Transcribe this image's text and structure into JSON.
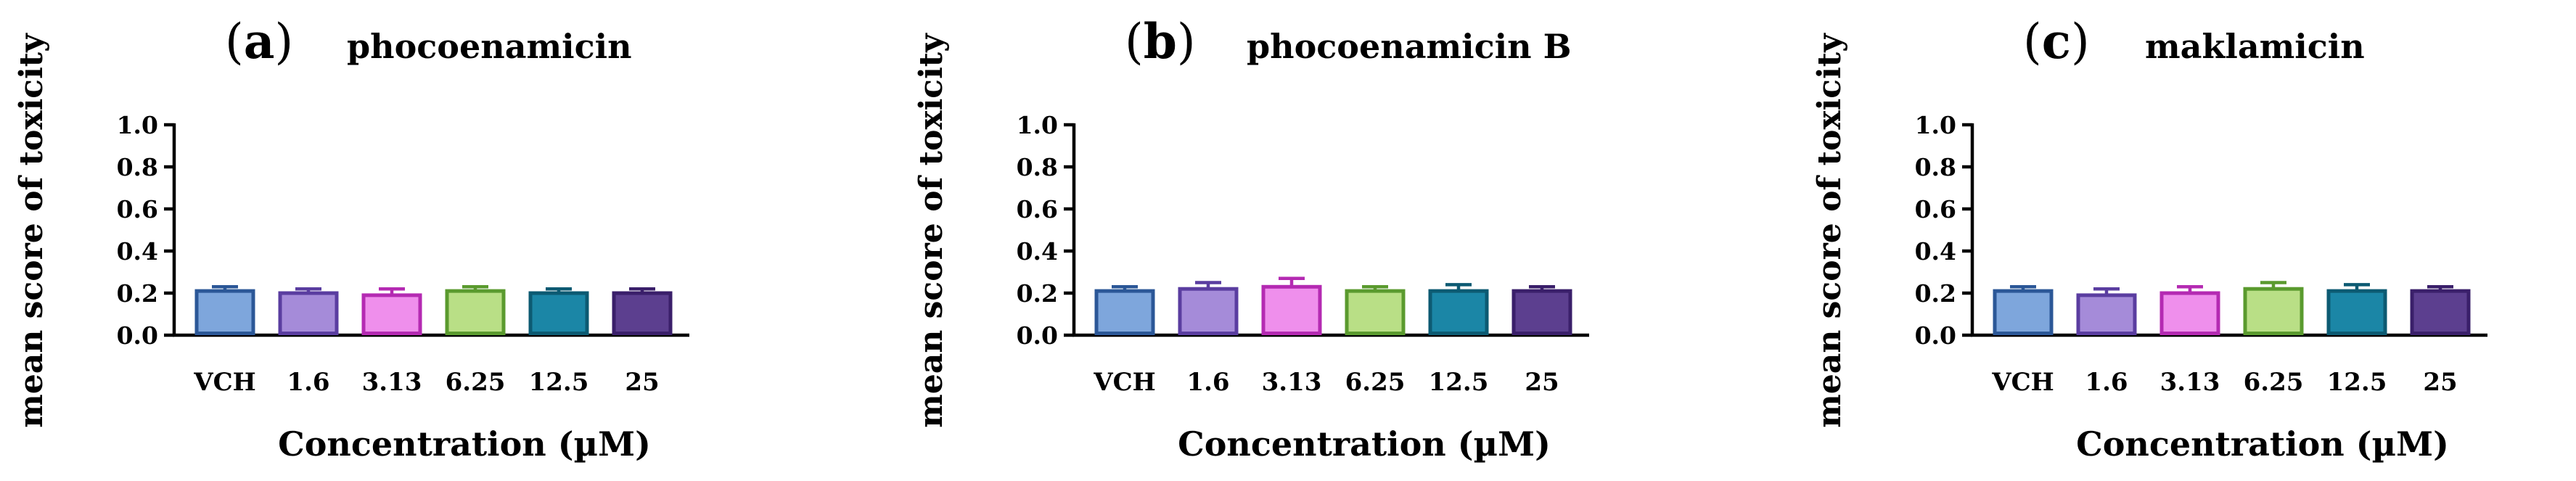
{
  "chart_data": [
    {
      "type": "bar",
      "panel": "a",
      "title": "phocoenamicin",
      "ylabel": "mean score of toxicity",
      "xlabel": "Concentration (µM)",
      "ylim": [
        0,
        1.0
      ],
      "yticks": [
        "0.0",
        "0.2",
        "0.4",
        "0.6",
        "0.8",
        "1.0"
      ],
      "categories": [
        "VCH",
        "1.6",
        "3.13",
        "6.25",
        "12.5",
        "25"
      ],
      "values": [
        0.21,
        0.2,
        0.19,
        0.21,
        0.2,
        0.2
      ],
      "errors": [
        0.02,
        0.02,
        0.03,
        0.02,
        0.02,
        0.02
      ],
      "fill_colors": [
        "#7ea6dc",
        "#a58bd9",
        "#ef8fec",
        "#b9df86",
        "#1b86a6",
        "#5c3f8f"
      ],
      "edge_colors": [
        "#2b5797",
        "#5a3da0",
        "#b42ab2",
        "#5a9a2e",
        "#0c5a72",
        "#3a1f6a"
      ]
    },
    {
      "type": "bar",
      "panel": "b",
      "title": "phocoenamicin B",
      "ylabel": "mean score of toxicity",
      "xlabel": "Concentration (µM)",
      "ylim": [
        0,
        1.0
      ],
      "yticks": [
        "0.0",
        "0.2",
        "0.4",
        "0.6",
        "0.8",
        "1.0"
      ],
      "categories": [
        "VCH",
        "1.6",
        "3.13",
        "6.25",
        "12.5",
        "25"
      ],
      "values": [
        0.21,
        0.22,
        0.23,
        0.21,
        0.21,
        0.21
      ],
      "errors": [
        0.02,
        0.03,
        0.04,
        0.02,
        0.03,
        0.02
      ],
      "fill_colors": [
        "#7ea6dc",
        "#a58bd9",
        "#ef8fec",
        "#b9df86",
        "#1b86a6",
        "#5c3f8f"
      ],
      "edge_colors": [
        "#2b5797",
        "#5a3da0",
        "#b42ab2",
        "#5a9a2e",
        "#0c5a72",
        "#3a1f6a"
      ]
    },
    {
      "type": "bar",
      "panel": "c",
      "title": "maklamicin",
      "ylabel": "mean score of toxicity",
      "xlabel": "Concentration (µM)",
      "ylim": [
        0,
        1.0
      ],
      "yticks": [
        "0.0",
        "0.2",
        "0.4",
        "0.6",
        "0.8",
        "1.0"
      ],
      "categories": [
        "VCH",
        "1.6",
        "3.13",
        "6.25",
        "12.5",
        "25"
      ],
      "values": [
        0.21,
        0.19,
        0.2,
        0.22,
        0.21,
        0.21
      ],
      "errors": [
        0.02,
        0.03,
        0.03,
        0.03,
        0.03,
        0.02
      ],
      "fill_colors": [
        "#7ea6dc",
        "#a58bd9",
        "#ef8fec",
        "#b9df86",
        "#1b86a6",
        "#5c3f8f"
      ],
      "edge_colors": [
        "#2b5797",
        "#5a3da0",
        "#b42ab2",
        "#5a9a2e",
        "#0c5a72",
        "#3a1f6a"
      ]
    }
  ]
}
